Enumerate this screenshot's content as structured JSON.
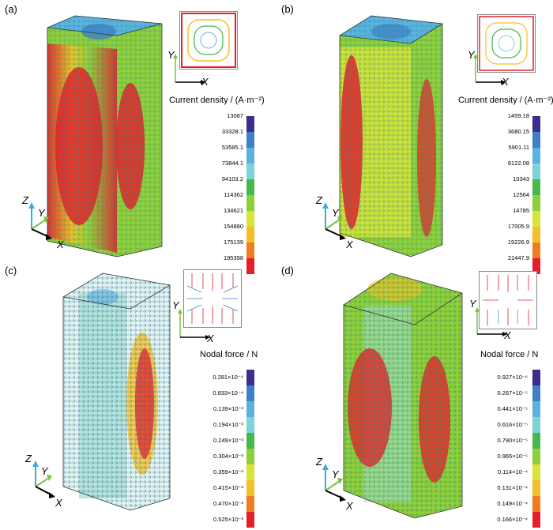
{
  "panels": [
    {
      "label": "(a)",
      "colorbar_title": "Current density / (A·m⁻²)",
      "colorbar_labels": [
        "13087",
        "33328.1",
        "53585.1",
        "73844.1",
        "94103.2",
        "114362",
        "134621",
        "154880",
        "175139",
        "195398"
      ]
    },
    {
      "label": "(b)",
      "colorbar_title": "Current density / (A·m⁻²)",
      "colorbar_labels": [
        "1459.18",
        "3680.15",
        "5901.11",
        "8122.08",
        "10343",
        "12564",
        "14785",
        "17005.9",
        "19226.9",
        "21447.9"
      ]
    },
    {
      "label": "(c)",
      "colorbar_title": "Nodal force / N",
      "colorbar_labels": [
        "0.281×10⁻⁴",
        "0.833×10⁻⁴",
        "0.139×10⁻³",
        "0.194×10⁻³",
        "0.249×10⁻³",
        "0.304×10⁻³",
        "0.359×10⁻³",
        "0.415×10⁻³",
        "0.470×10⁻³",
        "0.525×10⁻³"
      ]
    },
    {
      "label": "(d)",
      "colorbar_title": "Nodal force / N",
      "colorbar_labels": [
        "0.927×10⁻⁶",
        "0.267×10⁻⁵",
        "0.441×10⁻⁵",
        "0.616×10⁻⁵",
        "0.790×10⁻⁵",
        "0.965×10⁻⁵",
        "0.114×10⁻⁴",
        "0.131×10⁻⁴",
        "0.149×10⁻⁴",
        "0.166×10⁻⁴"
      ]
    }
  ],
  "axes": {
    "x": "X",
    "y": "Y",
    "z": "Z"
  },
  "colormap": [
    "#3a2f8e",
    "#3f7fc9",
    "#5ab3de",
    "#7fd3d6",
    "#45b84e",
    "#8fcf3a",
    "#d9e33a",
    "#f4bf27",
    "#ef7d1e",
    "#e3202a"
  ]
}
